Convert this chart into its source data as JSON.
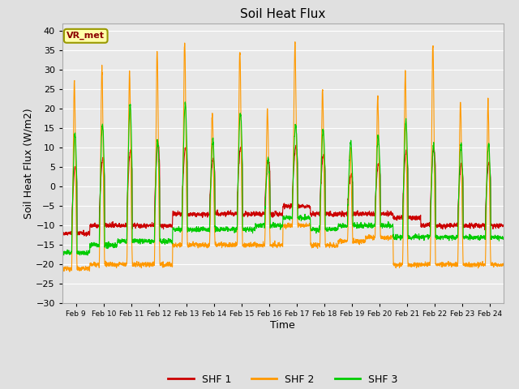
{
  "title": "Soil Heat Flux",
  "xlabel": "Time",
  "ylabel": "Soil Heat Flux (W/m2)",
  "ylim": [
    -30,
    42
  ],
  "yticks": [
    -30,
    -25,
    -20,
    -15,
    -10,
    -5,
    0,
    5,
    10,
    15,
    20,
    25,
    30,
    35,
    40
  ],
  "colors": {
    "SHF 1": "#cc0000",
    "SHF 2": "#ff9900",
    "SHF 3": "#00cc00"
  },
  "fig_bg": "#e0e0e0",
  "plot_bg": "#e8e8e8",
  "annotation_text": "VR_met",
  "annotation_fg": "#8b0000",
  "annotation_bg": "#ffffaa",
  "annotation_border": "#999900",
  "n_days": 16,
  "legend_labels": [
    "SHF 1",
    "SHF 2",
    "SHF 3"
  ],
  "x_tick_labels": [
    "Feb 9",
    "Feb 10",
    "Feb 11",
    "Feb 12",
    "Feb 13",
    "Feb 14",
    "Feb 15",
    "Feb 16",
    "Feb 17",
    "Feb 18",
    "Feb 19",
    "Feb 20",
    "Feb 21",
    "Feb 22",
    "Feb 23",
    "Feb 24"
  ],
  "shf2_peaks": [
    27,
    31,
    30,
    35,
    37,
    19,
    35,
    20,
    37,
    25,
    10,
    23,
    29,
    37,
    22,
    22
  ],
  "shf3_peaks": [
    14,
    16,
    21,
    12,
    21,
    12,
    19,
    7,
    16,
    15,
    11,
    13,
    17,
    11,
    11,
    11
  ],
  "shf1_peaks": [
    5,
    7,
    9,
    11,
    10,
    7,
    10,
    7,
    10,
    8,
    3,
    6,
    9,
    10,
    6,
    6
  ],
  "shf2_nights": [
    -21,
    -20,
    -20,
    -20,
    -15,
    -15,
    -15,
    -15,
    -10,
    -15,
    -14,
    -13,
    -20,
    -20,
    -20,
    -20
  ],
  "shf3_nights": [
    -17,
    -15,
    -14,
    -14,
    -11,
    -11,
    -11,
    -10,
    -8,
    -11,
    -10,
    -10,
    -13,
    -13,
    -13,
    -13
  ],
  "shf1_nights": [
    -12,
    -10,
    -10,
    -10,
    -7,
    -7,
    -7,
    -7,
    -5,
    -7,
    -7,
    -7,
    -8,
    -10,
    -10,
    -10
  ]
}
